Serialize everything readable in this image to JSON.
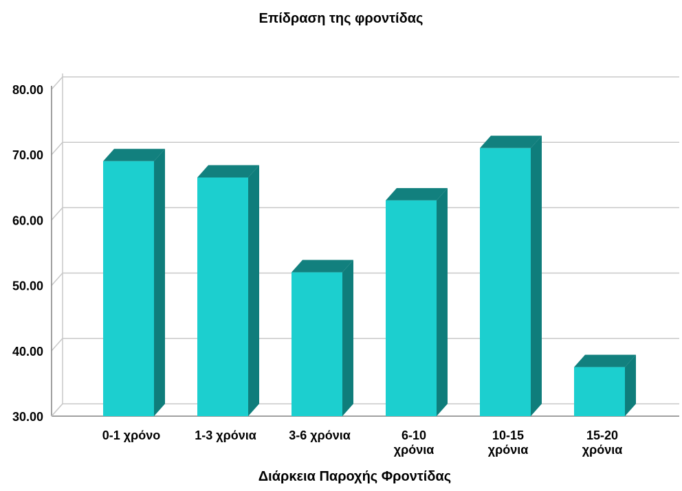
{
  "chart_data": {
    "type": "bar",
    "title": "Επίδραση της φροντίδας",
    "xlabel": "Διάρκεια Παροχής Φροντίδας",
    "ylabel": "",
    "ylim": [
      30,
      80
    ],
    "yticks": [
      "30.00",
      "40.00",
      "50.00",
      "60.00",
      "70.00",
      "80.00"
    ],
    "categories": [
      [
        "0-1 χρόνο"
      ],
      [
        "1-3 χρόνια"
      ],
      [
        "3-6 χρόνια"
      ],
      [
        "6-10",
        "χρόνια"
      ],
      [
        "10-15",
        "χρόνια"
      ],
      [
        "15-20",
        "χρόνια"
      ]
    ],
    "values": [
      69.0,
      66.5,
      52.0,
      63.0,
      71.0,
      37.5
    ],
    "grid": true,
    "style": "3d-bar",
    "colors": {
      "front": "#1ccfcf",
      "side": "#0f7d7b",
      "top": "#12807e",
      "grid": "#c8c8c8",
      "axis": "#808080"
    }
  }
}
